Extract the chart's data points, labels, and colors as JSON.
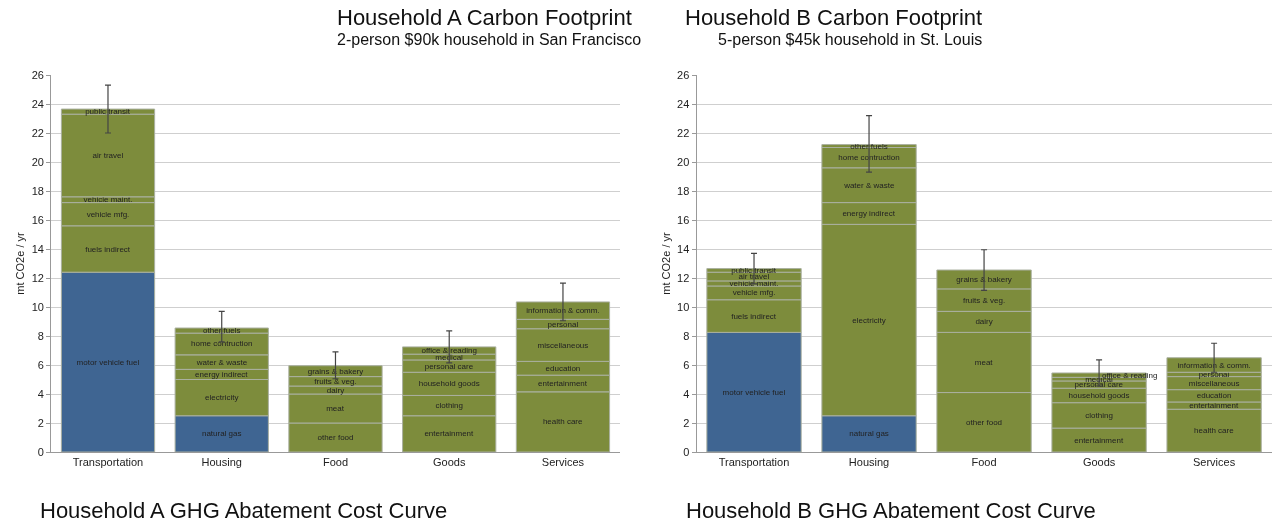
{
  "chart_data": [
    {
      "type": "bar",
      "stacked": true,
      "title": "Household A Carbon Footprint",
      "subtitle": "2-person $90k household in San Francisco",
      "ylabel": "mt CO2e / yr",
      "categories": [
        "Transportation",
        "Housing",
        "Food",
        "Goods",
        "Services"
      ],
      "ylim": [
        0,
        26
      ],
      "yticks": [
        0,
        2,
        4,
        6,
        8,
        10,
        12,
        14,
        16,
        18,
        20,
        22,
        24,
        26
      ],
      "grid": "y",
      "series": [
        {
          "values": [
            12.4,
            2.5,
            2.0,
            2.5,
            4.15
          ],
          "colors": [
            "#3f6592",
            "#3f6592",
            "#7d8c3c",
            "#7d8c3c",
            "#7d8c3c"
          ],
          "value_labels": [
            "motor vehicle fuel",
            "natural gas",
            "other food",
            "entertainment",
            "health care"
          ]
        },
        {
          "values": [
            3.2,
            2.5,
            2.0,
            1.4,
            1.15
          ],
          "color": "#7d8c3c",
          "value_labels": [
            "fuels indirect",
            "electricity",
            "meat",
            "clothing",
            "entertainment"
          ]
        },
        {
          "values": [
            1.6,
            0.7,
            0.55,
            1.6,
            0.95
          ],
          "color": "#7d8c3c",
          "value_labels": [
            "vehicle mfg.",
            "energy indirect",
            "dairy",
            "household goods",
            "education"
          ]
        },
        {
          "values": [
            0.4,
            1.0,
            0.65,
            0.85,
            2.25
          ],
          "color": "#7d8c3c",
          "value_labels": [
            "vehicle maint.",
            "water & waste",
            "fruits & veg.",
            "personal care",
            "miscellaneous"
          ]
        },
        {
          "values": [
            5.7,
            1.5,
            0.75,
            0.4,
            0.65
          ],
          "color": "#7d8c3c",
          "value_labels": [
            "air travel",
            "home contruction",
            "grains & bakery",
            "medical",
            "personal"
          ],
          "errors": [
            null,
            null,
            [
              5.05,
              6.9
            ],
            null,
            null
          ]
        },
        {
          "values": [
            0.35,
            0.35,
            null,
            0.5,
            1.2
          ],
          "color": "#7d8c3c",
          "value_labels": [
            "public transit",
            "other fuels",
            null,
            "office & reading",
            "information & comm."
          ],
          "errors": [
            [
              22.0,
              25.3
            ],
            [
              7.6,
              9.7
            ],
            null,
            [
              6.15,
              8.35
            ],
            [
              9.05,
              11.65
            ]
          ]
        }
      ],
      "annotations": [
        "Household A GHG Abatement Cost Curve"
      ]
    },
    {
      "type": "bar",
      "stacked": true,
      "title": "Household B Carbon Footprint",
      "subtitle": "5-person $45k household in St. Louis",
      "ylabel": "mt CO2e / yr",
      "categories": [
        "Transportation",
        "Housing",
        "Food",
        "Goods",
        "Services"
      ],
      "ylim": [
        0,
        26
      ],
      "yticks": [
        0,
        2,
        4,
        6,
        8,
        10,
        12,
        14,
        16,
        18,
        20,
        22,
        24,
        26
      ],
      "grid": "y",
      "series": [
        {
          "values": [
            8.25,
            2.5,
            4.1,
            1.65,
            2.95
          ],
          "colors": [
            "#3f6592",
            "#3f6592",
            "#7d8c3c",
            "#7d8c3c",
            "#7d8c3c"
          ],
          "value_labels": [
            "motor vehicle fuel",
            "natural gas",
            "other food",
            "entertainment",
            "health care"
          ]
        },
        {
          "values": [
            2.25,
            13.2,
            4.15,
            1.75,
            0.5
          ],
          "color": "#7d8c3c",
          "value_labels": [
            "fuels indirect",
            "electricity",
            "meat",
            "clothing",
            "entertainment"
          ]
        },
        {
          "values": [
            0.95,
            1.5,
            1.45,
            1.0,
            0.85
          ],
          "color": "#7d8c3c",
          "value_labels": [
            "vehicle mfg.",
            "energy indirect",
            "dairy",
            "household goods",
            "education"
          ]
        },
        {
          "values": [
            0.35,
            2.4,
            1.55,
            0.5,
            0.9
          ],
          "color": "#7d8c3c",
          "value_labels": [
            "vehicle maint.",
            "water & waste",
            "fruits & veg.",
            "personal care",
            "miscellaneous"
          ]
        },
        {
          "values": [
            0.6,
            1.4,
            1.3,
            0.25,
            0.3
          ],
          "color": "#7d8c3c",
          "value_labels": [
            "air travel",
            "home contruction",
            "grains & bakery",
            "medical",
            "personal"
          ],
          "errors": [
            null,
            null,
            [
              11.15,
              13.95
            ],
            null,
            null
          ]
        },
        {
          "values": [
            0.25,
            0.2,
            null,
            0.3,
            1.0
          ],
          "color": "#7d8c3c",
          "value_labels": [
            "public transit",
            "other fuels",
            null,
            "office & reading",
            "information & comm."
          ],
          "errors": [
            [
              11.6,
              13.7
            ],
            [
              19.3,
              23.2
            ],
            null,
            [
              4.55,
              6.35
            ],
            [
              5.5,
              7.5
            ]
          ]
        }
      ],
      "annotations": [
        "Household B GHG Abatement Cost Curve"
      ]
    }
  ]
}
